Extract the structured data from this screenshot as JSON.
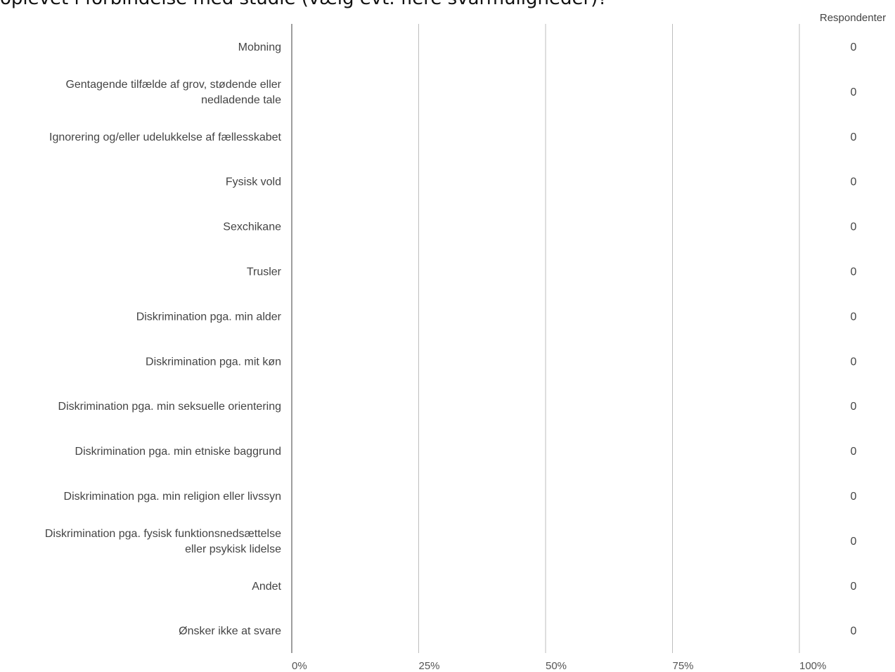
{
  "question": {
    "title": "oplevet i forbindelse med studie (vælg evt. flere svarmuligheder)?"
  },
  "colors": {
    "gridline": "#bdbdbd",
    "baseline": "#9e9e9e",
    "text": "#444444",
    "bar": "#4a90d9"
  },
  "chart_data": {
    "type": "bar",
    "orientation": "horizontal",
    "title": "oplevet i forbindelse med studie (vælg evt. flere svarmuligheder)?",
    "count_header": "Respondenter",
    "categories": [
      [
        "Mobning"
      ],
      [
        "Gentagende tilfælde af grov, stødende eller",
        "nedladende tale"
      ],
      [
        "Ignorering og/eller udelukkelse af fællesskabet"
      ],
      [
        "Fysisk vold"
      ],
      [
        "Sexchikane"
      ],
      [
        "Trusler"
      ],
      [
        "Diskrimination pga. min alder"
      ],
      [
        "Diskrimination pga. mit køn"
      ],
      [
        "Diskrimination pga. min seksuelle orientering"
      ],
      [
        "Diskrimination pga. min etniske baggrund"
      ],
      [
        "Diskrimination pga. min religion eller livssyn"
      ],
      [
        "Diskrimination pga. fysisk funktionsnedsættelse",
        "eller psykisk lidelse"
      ],
      [
        "Andet"
      ],
      [
        "Ønsker ikke at svare"
      ]
    ],
    "values": [
      0,
      0,
      0,
      0,
      0,
      0,
      0,
      0,
      0,
      0,
      0,
      0,
      0,
      0
    ],
    "counts": [
      "0",
      "0",
      "0",
      "0",
      "0",
      "0",
      "0",
      "0",
      "0",
      "0",
      "0",
      "0",
      "0",
      "0"
    ],
    "xlim": [
      0,
      100
    ],
    "xticks": [
      0,
      25,
      50,
      75,
      100
    ],
    "xtick_labels": [
      "0%",
      "25%",
      "50%",
      "75%",
      "100%"
    ],
    "grid": true
  }
}
